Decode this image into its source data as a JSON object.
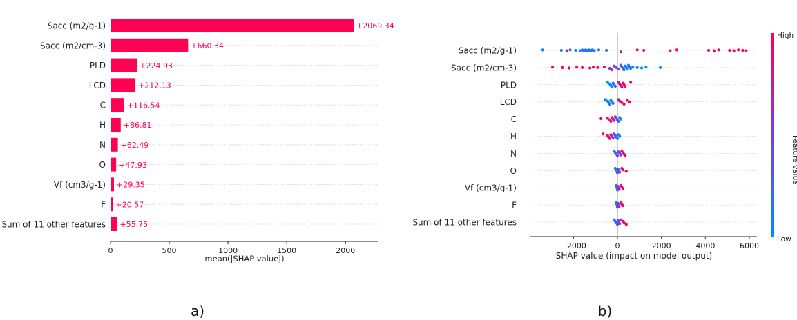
{
  "chart_data": [
    {
      "type": "bar",
      "panel_label": "a)",
      "orientation": "horizontal",
      "xlabel": "mean(|SHAP value|)",
      "xlim": [
        0,
        2300
      ],
      "xticks": [
        "0",
        "500",
        "1000",
        "1500",
        "2000"
      ],
      "bar_color": "#ff0052",
      "grid": "dotted row lines",
      "categories": [
        "Sacc (m2/g-1)",
        "Sacc (m2/cm-3)",
        "PLD",
        "LCD",
        "C",
        "H",
        "N",
        "O",
        "Vf (cm3/g-1)",
        "F",
        "Sum of 11 other features"
      ],
      "values": [
        2069.34,
        660.34,
        224.93,
        212.13,
        116.54,
        86.81,
        62.49,
        47.93,
        29.35,
        20.57,
        55.75
      ],
      "value_labels": [
        "+2069.34",
        "+660.34",
        "+224.93",
        "+212.13",
        "+116.54",
        "+86.81",
        "+62.49",
        "+47.93",
        "+29.35",
        "+20.57",
        "+55.75"
      ]
    },
    {
      "type": "scatter",
      "subtype": "beeswarm",
      "panel_label": "b)",
      "xlabel": "SHAP value (impact on model output)",
      "xlim": [
        -3800,
        6500
      ],
      "xticks": [
        "−2000",
        "0",
        "2000",
        "4000",
        "6000"
      ],
      "colorbar": {
        "title": "Feature value",
        "high_label": "High",
        "low_label": "Low",
        "low_color": "#008bfb",
        "high_color": "#ff0052"
      },
      "categories": [
        "Sacc (m2/g-1)",
        "Sacc (m2/cm-3)",
        "PLD",
        "LCD",
        "C",
        "H",
        "N",
        "O",
        "Vf (cm3/g-1)",
        "F",
        "Sum of 11 other features"
      ],
      "series": [
        {
          "feature": "Sacc (m2/g-1)",
          "points": [
            [
              -3400,
              0
            ],
            [
              -2550,
              0.1
            ],
            [
              -2300,
              0.9
            ],
            [
              -2150,
              0.2
            ],
            [
              -1900,
              0.1
            ],
            [
              -1700,
              0.15
            ],
            [
              -1600,
              0.1
            ],
            [
              -1550,
              0.2
            ],
            [
              -1500,
              0.15
            ],
            [
              -1450,
              0.2
            ],
            [
              -1400,
              0.1
            ],
            [
              -1350,
              0.2
            ],
            [
              -1300,
              0.15
            ],
            [
              -1250,
              0.1
            ],
            [
              -1200,
              0.2
            ],
            [
              -1150,
              0.15
            ],
            [
              -1100,
              0.1
            ],
            [
              -1050,
              0.1
            ],
            [
              -850,
              0.2
            ],
            [
              -500,
              0.3
            ],
            [
              150,
              0.7
            ],
            [
              900,
              0.8
            ],
            [
              1200,
              0.7
            ],
            [
              2400,
              0.9
            ],
            [
              2700,
              1
            ],
            [
              4150,
              1
            ],
            [
              4400,
              1
            ],
            [
              4600,
              0.9
            ],
            [
              5100,
              1
            ],
            [
              5300,
              1
            ],
            [
              5500,
              1
            ],
            [
              5700,
              1
            ],
            [
              5850,
              1
            ]
          ]
        },
        {
          "feature": "Sacc (m2/cm-3)",
          "points": [
            [
              -2950,
              1
            ],
            [
              -2500,
              1
            ],
            [
              -2200,
              1
            ],
            [
              -1850,
              1
            ],
            [
              -1600,
              1
            ],
            [
              -1250,
              1
            ],
            [
              -1100,
              0.95
            ],
            [
              -900,
              1
            ],
            [
              -600,
              0.9
            ],
            [
              -350,
              0.7
            ],
            [
              -250,
              0.6
            ],
            [
              -150,
              0.55
            ],
            [
              -50,
              0.5
            ],
            [
              50,
              0.45
            ],
            [
              150,
              0.3
            ],
            [
              200,
              0.25
            ],
            [
              250,
              0.2
            ],
            [
              300,
              0.15
            ],
            [
              350,
              0.15
            ],
            [
              400,
              0.1
            ],
            [
              450,
              0.1
            ],
            [
              500,
              0.1
            ],
            [
              550,
              0.1
            ],
            [
              600,
              0.05
            ],
            [
              700,
              0.05
            ],
            [
              900,
              0
            ],
            [
              1100,
              0
            ],
            [
              1300,
              0
            ],
            [
              1950,
              0
            ]
          ]
        },
        {
          "feature": "PLD",
          "points": [
            [
              -450,
              0
            ],
            [
              -350,
              0
            ],
            [
              -300,
              0.05
            ],
            [
              -250,
              0.1
            ],
            [
              -200,
              0.1
            ],
            [
              -150,
              0.2
            ],
            [
              -100,
              0.3
            ],
            [
              50,
              0.7
            ],
            [
              100,
              0.8
            ],
            [
              150,
              0.85
            ],
            [
              200,
              0.9
            ],
            [
              250,
              0.9
            ],
            [
              300,
              0.95
            ],
            [
              350,
              0.95
            ],
            [
              600,
              1
            ]
          ]
        },
        {
          "feature": "LCD",
          "points": [
            [
              -550,
              0
            ],
            [
              -450,
              0
            ],
            [
              -400,
              0.05
            ],
            [
              -350,
              0.1
            ],
            [
              -300,
              0.1
            ],
            [
              -250,
              0.15
            ],
            [
              -200,
              0.2
            ],
            [
              50,
              0.7
            ],
            [
              100,
              0.8
            ],
            [
              200,
              0.9
            ],
            [
              300,
              0.95
            ],
            [
              450,
              1
            ],
            [
              550,
              1
            ]
          ]
        },
        {
          "feature": "C",
          "points": [
            [
              -750,
              1
            ],
            [
              -450,
              0.95
            ],
            [
              -350,
              0.9
            ],
            [
              -300,
              0.85
            ],
            [
              -250,
              0.9
            ],
            [
              -200,
              0.8
            ],
            [
              -150,
              0.7
            ],
            [
              -100,
              0.6
            ],
            [
              -50,
              0.5
            ],
            [
              0,
              0.3
            ],
            [
              50,
              0.2
            ],
            [
              100,
              0.1
            ],
            [
              150,
              0
            ]
          ]
        },
        {
          "feature": "H",
          "points": [
            [
              -650,
              1
            ],
            [
              -450,
              0.9
            ],
            [
              -400,
              0.95
            ],
            [
              -350,
              0.85
            ],
            [
              -300,
              0.8
            ],
            [
              -250,
              0.7
            ],
            [
              -200,
              0.6
            ],
            [
              -150,
              0.5
            ],
            [
              -100,
              0.4
            ],
            [
              -50,
              0.2
            ],
            [
              0,
              0.1
            ],
            [
              50,
              0
            ],
            [
              100,
              0
            ]
          ]
        },
        {
          "feature": "N",
          "points": [
            [
              -150,
              0.1
            ],
            [
              -100,
              0.2
            ],
            [
              -50,
              0.3
            ],
            [
              0,
              0.4
            ],
            [
              50,
              0.5
            ],
            [
              100,
              0.6
            ],
            [
              150,
              0.7
            ],
            [
              200,
              0.8
            ],
            [
              250,
              0.9
            ],
            [
              300,
              0.9
            ],
            [
              350,
              1
            ]
          ]
        },
        {
          "feature": "O",
          "points": [
            [
              -100,
              0
            ],
            [
              -50,
              0.1
            ],
            [
              -25,
              0.15
            ],
            [
              0,
              0.2
            ],
            [
              25,
              0.3
            ],
            [
              50,
              0.35
            ],
            [
              100,
              0.6
            ],
            [
              200,
              0.8
            ],
            [
              250,
              0.9
            ],
            [
              400,
              1
            ]
          ]
        },
        {
          "feature": "Vf (cm3/g-1)",
          "points": [
            [
              -50,
              0.1
            ],
            [
              -30,
              0.2
            ],
            [
              -10,
              0.25
            ],
            [
              0,
              0.3
            ],
            [
              20,
              0.4
            ],
            [
              40,
              0.5
            ],
            [
              80,
              0.7
            ],
            [
              150,
              0.8
            ],
            [
              200,
              0.9
            ],
            [
              250,
              1
            ]
          ]
        },
        {
          "feature": "F",
          "points": [
            [
              -50,
              0.1
            ],
            [
              -30,
              0.2
            ],
            [
              -10,
              0.2
            ],
            [
              0,
              0.3
            ],
            [
              20,
              0.4
            ],
            [
              40,
              0.5
            ],
            [
              80,
              0.7
            ],
            [
              150,
              0.8
            ],
            [
              200,
              0.9
            ],
            [
              250,
              1
            ]
          ]
        },
        {
          "feature": "Sum of 11 other features",
          "points": [
            [
              -150,
              0.1
            ],
            [
              -100,
              0.15
            ],
            [
              -50,
              0.2
            ],
            [
              0,
              0.3
            ],
            [
              30,
              0.35
            ],
            [
              60,
              0.4
            ],
            [
              100,
              0.6
            ],
            [
              150,
              0.7
            ],
            [
              250,
              0.9
            ],
            [
              300,
              1
            ],
            [
              400,
              1
            ]
          ]
        }
      ]
    }
  ]
}
